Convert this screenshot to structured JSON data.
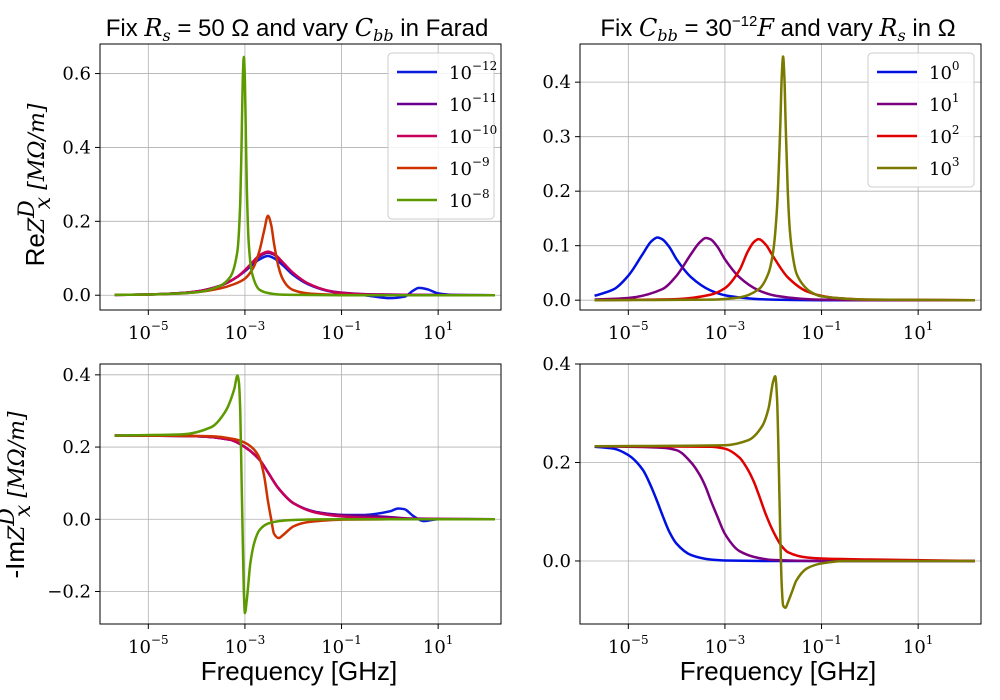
{
  "xlabel_text": "Frequency [GHz]",
  "ylabel_top": {
    "prefix": "Re",
    "math": "Z",
    "sup": "D",
    "sub": "x",
    "unit": " [MΩ/m]"
  },
  "ylabel_bottom": {
    "prefix": "-Im",
    "math": "Z",
    "sup": "D",
    "sub": "x",
    "unit": " [MΩ/m]"
  },
  "titles": {
    "left": {
      "p1": "Fix ",
      "m1": "R",
      "m1sub": "s",
      "p2": " = 50 Ω",
      "p3": " and vary ",
      "m2": "C",
      "m2sub": "bb",
      "p4": " in Farad"
    },
    "right": {
      "p1": "Fix ",
      "m1": "C",
      "m1sub": "bb",
      "p2": " = 30",
      "p2sup": "−12",
      "m2": "F",
      "p3": " and vary ",
      "m3": "R",
      "m3sub": "s",
      "p4": " in Ω"
    }
  },
  "chart_data": [
    {
      "type": "line",
      "panel": "top-left",
      "xscale": "log",
      "xlim": [
        1e-06,
        200
      ],
      "ylim": [
        -0.04,
        0.68
      ],
      "xticks": [
        "10^-5",
        "10^-3",
        "10^-1",
        "10^1"
      ],
      "yticks": [
        "0.0",
        "0.2",
        "0.4",
        "0.6"
      ],
      "grid": true,
      "legend": "top-right",
      "series": [
        {
          "name": "10^-12",
          "color": "#0a1ae0",
          "x": [
            2e-06,
            1e-05,
            5e-05,
            0.0001,
            0.0003,
            0.0007,
            0.001,
            0.0015,
            0.002,
            0.003,
            0.004,
            0.006,
            0.01,
            0.02,
            0.05,
            0.1,
            0.3,
            1,
            2,
            3,
            4,
            6,
            10,
            20,
            150
          ],
          "y": [
            0.001,
            0.002,
            0.006,
            0.01,
            0.025,
            0.05,
            0.065,
            0.085,
            0.097,
            0.106,
            0.1,
            0.082,
            0.055,
            0.03,
            0.012,
            0.005,
            0,
            -0.008,
            -0.004,
            0.012,
            0.02,
            0.016,
            0.005,
            0.001,
            0
          ]
        },
        {
          "name": "10^-11",
          "color": "#6a0090",
          "x": [
            2e-06,
            1e-05,
            5e-05,
            0.0001,
            0.0003,
            0.0007,
            0.001,
            0.0015,
            0.002,
            0.003,
            0.004,
            0.006,
            0.01,
            0.02,
            0.05,
            0.1,
            0.3,
            1,
            3,
            10,
            150
          ],
          "y": [
            0.001,
            0.002,
            0.006,
            0.01,
            0.025,
            0.05,
            0.067,
            0.09,
            0.105,
            0.115,
            0.11,
            0.088,
            0.06,
            0.032,
            0.013,
            0.007,
            0.003,
            0.002,
            0.001,
            0.001,
            0
          ]
        },
        {
          "name": "10^-10",
          "color": "#c8005a",
          "x": [
            2e-06,
            1e-05,
            5e-05,
            0.0001,
            0.0003,
            0.0007,
            0.001,
            0.0015,
            0.002,
            0.003,
            0.004,
            0.006,
            0.01,
            0.02,
            0.05,
            0.1,
            0.3,
            1,
            3,
            10,
            150
          ],
          "y": [
            0.001,
            0.002,
            0.006,
            0.01,
            0.025,
            0.05,
            0.068,
            0.092,
            0.108,
            0.118,
            0.112,
            0.09,
            0.06,
            0.032,
            0.013,
            0.006,
            0.002,
            0.001,
            0.001,
            0,
            0
          ]
        },
        {
          "name": "10^-9",
          "color": "#cc3300",
          "x": [
            2e-06,
            1e-05,
            5e-05,
            0.0001,
            0.0003,
            0.0006,
            0.001,
            0.0015,
            0.002,
            0.0025,
            0.003,
            0.0035,
            0.004,
            0.005,
            0.006,
            0.008,
            0.01,
            0.02,
            0.05,
            0.1,
            1,
            150
          ],
          "y": [
            0.001,
            0.002,
            0.005,
            0.008,
            0.018,
            0.03,
            0.045,
            0.075,
            0.12,
            0.175,
            0.215,
            0.19,
            0.14,
            0.075,
            0.045,
            0.022,
            0.014,
            0.005,
            0.002,
            0.001,
            0,
            0
          ]
        },
        {
          "name": "10^-8",
          "color": "#5c9a00",
          "x": [
            2e-06,
            1e-05,
            0.0001,
            0.0003,
            0.0005,
            0.0007,
            0.0008,
            0.00085,
            0.0009,
            0.00095,
            0.001,
            0.00105,
            0.0011,
            0.0012,
            0.0014,
            0.002,
            0.003,
            0.005,
            0.01,
            0.1,
            150
          ],
          "y": [
            0.001,
            0.002,
            0.008,
            0.025,
            0.05,
            0.12,
            0.25,
            0.4,
            0.58,
            0.645,
            0.58,
            0.42,
            0.28,
            0.14,
            0.06,
            0.015,
            0.006,
            0.002,
            0.001,
            0,
            0
          ]
        }
      ]
    },
    {
      "type": "line",
      "panel": "top-right",
      "xscale": "log",
      "xlim": [
        1e-06,
        200
      ],
      "ylim": [
        -0.018,
        0.47
      ],
      "xticks": [
        "10^-5",
        "10^-3",
        "10^-1",
        "10^1"
      ],
      "yticks": [
        "0.0",
        "0.1",
        "0.2",
        "0.3",
        "0.4"
      ],
      "grid": true,
      "legend": "top-right",
      "series": [
        {
          "name": "10^0",
          "color": "#0010e0",
          "x": [
            2e-06,
            5e-06,
            1e-05,
            2e-05,
            3e-05,
            4e-05,
            5e-05,
            7e-05,
            0.0001,
            0.0002,
            0.0005,
            0.001,
            0.002,
            0.005,
            0.01,
            0.1,
            150
          ],
          "y": [
            0.008,
            0.02,
            0.045,
            0.085,
            0.108,
            0.115,
            0.112,
            0.098,
            0.075,
            0.042,
            0.018,
            0.009,
            0.005,
            0.002,
            0.001,
            0,
            0
          ]
        },
        {
          "name": "10^1",
          "color": "#7a0080",
          "x": [
            2e-06,
            1e-05,
            5e-05,
            0.0001,
            0.0002,
            0.0003,
            0.0004,
            0.0005,
            0.0007,
            0.001,
            0.002,
            0.005,
            0.01,
            0.02,
            0.05,
            0.1,
            1,
            150
          ],
          "y": [
            0.001,
            0.004,
            0.02,
            0.045,
            0.085,
            0.106,
            0.114,
            0.112,
            0.098,
            0.075,
            0.042,
            0.018,
            0.009,
            0.005,
            0.002,
            0.001,
            0,
            0
          ]
        },
        {
          "name": "10^2",
          "color": "#e00000",
          "x": [
            2e-06,
            0.0001,
            0.0005,
            0.001,
            0.002,
            0.003,
            0.004,
            0.005,
            0.007,
            0.01,
            0.02,
            0.05,
            0.1,
            0.2,
            1,
            150
          ],
          "y": [
            0,
            0.002,
            0.01,
            0.022,
            0.055,
            0.09,
            0.107,
            0.112,
            0.102,
            0.08,
            0.042,
            0.016,
            0.008,
            0.004,
            0.001,
            0
          ]
        },
        {
          "name": "10^3",
          "color": "#7a7a00",
          "x": [
            2e-06,
            0.0005,
            0.002,
            0.005,
            0.008,
            0.01,
            0.012,
            0.014,
            0.015,
            0.016,
            0.017,
            0.018,
            0.02,
            0.022,
            0.025,
            0.03,
            0.04,
            0.06,
            0.1,
            1,
            150
          ],
          "y": [
            0,
            0.001,
            0.005,
            0.02,
            0.05,
            0.09,
            0.17,
            0.32,
            0.41,
            0.447,
            0.41,
            0.33,
            0.2,
            0.13,
            0.085,
            0.05,
            0.03,
            0.015,
            0.007,
            0.001,
            0
          ]
        }
      ]
    },
    {
      "type": "line",
      "panel": "bottom-left",
      "xscale": "log",
      "xlim": [
        1e-06,
        200
      ],
      "ylim": [
        -0.29,
        0.43
      ],
      "xticks": [
        "10^-5",
        "10^-3",
        "10^-1",
        "10^1"
      ],
      "yticks": [
        "−0.2",
        "0.0",
        "0.2",
        "0.4"
      ],
      "grid": true,
      "legend": "none",
      "series": [
        {
          "name": "10^-12",
          "color": "#0a1ae0",
          "x": [
            2e-06,
            0.0001,
            0.0005,
            0.001,
            0.002,
            0.003,
            0.005,
            0.01,
            0.03,
            0.1,
            0.3,
            1,
            1.5,
            2,
            3,
            5,
            10,
            150
          ],
          "y": [
            0.232,
            0.23,
            0.22,
            0.2,
            0.165,
            0.13,
            0.085,
            0.045,
            0.02,
            0.012,
            0.012,
            0.022,
            0.03,
            0.028,
            0.01,
            -0.005,
            0,
            0
          ]
        },
        {
          "name": "10^-11",
          "color": "#6a0090",
          "x": [
            2e-06,
            0.0001,
            0.0005,
            0.001,
            0.002,
            0.003,
            0.005,
            0.01,
            0.03,
            0.1,
            0.3,
            1,
            3,
            10,
            150
          ],
          "y": [
            0.232,
            0.23,
            0.22,
            0.2,
            0.165,
            0.13,
            0.085,
            0.045,
            0.02,
            0.012,
            0.01,
            0.006,
            0.002,
            0.001,
            0
          ]
        },
        {
          "name": "10^-10",
          "color": "#c8005a",
          "x": [
            2e-06,
            0.0001,
            0.0005,
            0.001,
            0.002,
            0.003,
            0.005,
            0.01,
            0.03,
            0.1,
            0.3,
            1,
            3,
            150
          ],
          "y": [
            0.232,
            0.23,
            0.22,
            0.2,
            0.165,
            0.13,
            0.085,
            0.045,
            0.018,
            0.008,
            0.004,
            0.002,
            0.001,
            0
          ]
        },
        {
          "name": "10^-9",
          "color": "#cc3300",
          "x": [
            2e-06,
            0.0002,
            0.0006,
            0.001,
            0.0015,
            0.002,
            0.0025,
            0.003,
            0.0035,
            0.004,
            0.005,
            0.006,
            0.008,
            0.01,
            0.02,
            0.05,
            0.1,
            1,
            150
          ],
          "y": [
            0.232,
            0.23,
            0.222,
            0.212,
            0.195,
            0.17,
            0.12,
            0.05,
            0,
            -0.04,
            -0.052,
            -0.045,
            -0.03,
            -0.02,
            -0.008,
            -0.003,
            -0.001,
            0,
            0
          ]
        },
        {
          "name": "10^-8",
          "color": "#5c9a00",
          "x": [
            2e-06,
            5e-05,
            0.0002,
            0.0004,
            0.0006,
            0.0007,
            0.00075,
            0.0008,
            0.00085,
            0.0009,
            0.00095,
            0.001,
            0.0011,
            0.0013,
            0.0016,
            0.002,
            0.003,
            0.005,
            0.01,
            0.1,
            150
          ],
          "y": [
            0.232,
            0.235,
            0.255,
            0.3,
            0.36,
            0.398,
            0.38,
            0.3,
            0.12,
            -0.05,
            -0.2,
            -0.26,
            -0.22,
            -0.12,
            -0.06,
            -0.03,
            -0.012,
            -0.005,
            -0.002,
            0,
            0
          ]
        }
      ]
    },
    {
      "type": "line",
      "panel": "bottom-right",
      "xscale": "log",
      "xlim": [
        1e-06,
        200
      ],
      "ylim": [
        -0.128,
        0.4
      ],
      "xticks": [
        "10^-5",
        "10^-3",
        "10^-1",
        "10^1"
      ],
      "yticks": [
        "0.0",
        "0.2",
        "0.4"
      ],
      "grid": true,
      "legend": "none",
      "series": [
        {
          "name": "10^0",
          "color": "#0010e0",
          "x": [
            2e-06,
            5e-06,
            1e-05,
            2e-05,
            3e-05,
            4e-05,
            5e-05,
            7e-05,
            0.0001,
            0.0002,
            0.0005,
            0.001,
            0.01,
            150
          ],
          "y": [
            0.232,
            0.228,
            0.215,
            0.185,
            0.15,
            0.12,
            0.095,
            0.06,
            0.035,
            0.012,
            0.003,
            0.001,
            0,
            0
          ]
        },
        {
          "name": "10^1",
          "color": "#7a0080",
          "x": [
            2e-06,
            5e-05,
            0.0001,
            0.0002,
            0.0003,
            0.0004,
            0.0005,
            0.0007,
            0.001,
            0.002,
            0.005,
            0.01,
            0.1,
            150
          ],
          "y": [
            0.233,
            0.23,
            0.225,
            0.2,
            0.175,
            0.15,
            0.125,
            0.09,
            0.055,
            0.02,
            0.006,
            0.002,
            0,
            0
          ]
        },
        {
          "name": "10^2",
          "color": "#e00000",
          "x": [
            2e-06,
            0.0005,
            0.001,
            0.002,
            0.003,
            0.004,
            0.005,
            0.007,
            0.01,
            0.015,
            0.02,
            0.05,
            0.1,
            1,
            150
          ],
          "y": [
            0.233,
            0.232,
            0.228,
            0.21,
            0.185,
            0.16,
            0.135,
            0.095,
            0.06,
            0.03,
            0.018,
            0.007,
            0.005,
            0.003,
            0
          ]
        },
        {
          "name": "10^3",
          "color": "#7a7a00",
          "x": [
            2e-06,
            0.001,
            0.003,
            0.006,
            0.008,
            0.01,
            0.011,
            0.012,
            0.013,
            0.014,
            0.015,
            0.016,
            0.018,
            0.02,
            0.025,
            0.03,
            0.05,
            0.1,
            0.3,
            1,
            150
          ],
          "y": [
            0.233,
            0.235,
            0.245,
            0.275,
            0.31,
            0.365,
            0.375,
            0.33,
            0.2,
            0.05,
            -0.05,
            -0.09,
            -0.095,
            -0.085,
            -0.06,
            -0.04,
            -0.015,
            -0.005,
            0,
            0,
            0
          ]
        }
      ]
    }
  ]
}
